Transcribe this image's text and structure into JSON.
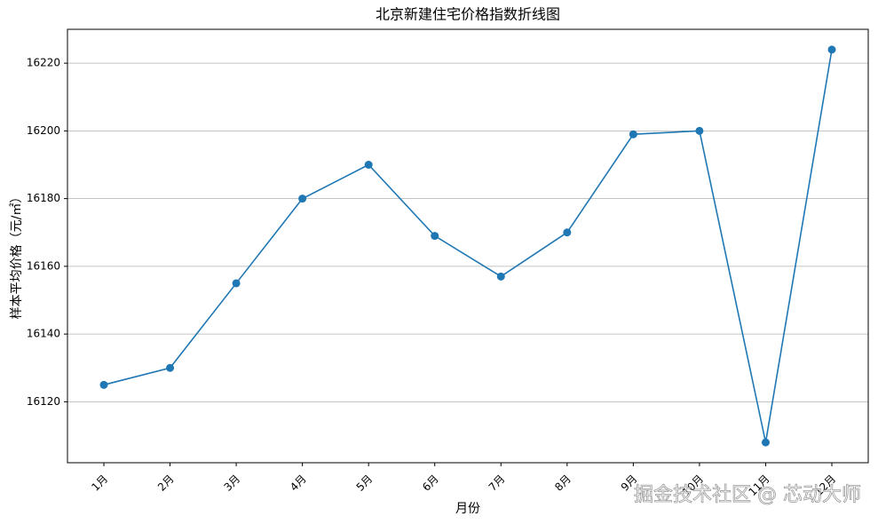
{
  "chart_data": {
    "type": "line",
    "title": "北京新建住宅价格指数折线图",
    "x_label": "月份",
    "y_label": "样本平均价格（元/㎡）",
    "categories": [
      "1月",
      "2月",
      "3月",
      "4月",
      "5月",
      "6月",
      "7月",
      "8月",
      "9月",
      "10月",
      "11月",
      "12月"
    ],
    "series": [
      {
        "name": "样本平均价格",
        "color": "#1f77b4",
        "values": [
          16125,
          16130,
          16155,
          16180,
          16190,
          16169,
          16157,
          16170,
          16199,
          16200,
          16108,
          16224
        ]
      }
    ],
    "ylim": [
      16102,
      16230
    ],
    "yticks": [
      16120,
      16140,
      16160,
      16180,
      16200,
      16220
    ],
    "grid": true,
    "watermark": "掘金技术社区 @ 芯动大师"
  }
}
